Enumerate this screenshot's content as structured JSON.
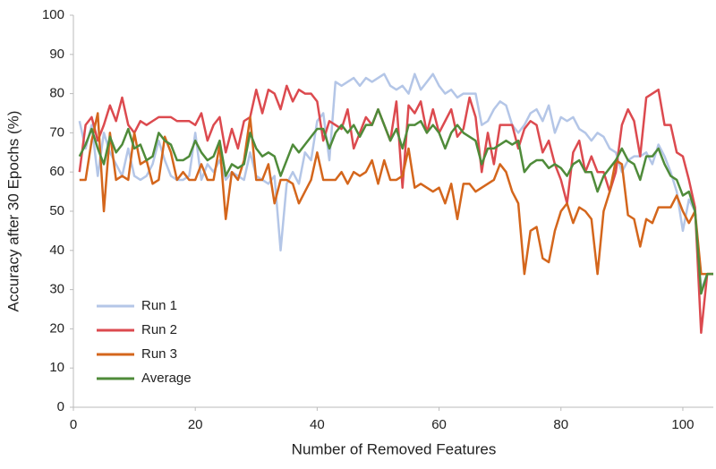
{
  "chart_data": {
    "type": "line",
    "xlabel": "Number of Removed Features",
    "ylabel": "Accuracy after 30 Epochs (%)",
    "x": [
      1,
      2,
      3,
      4,
      5,
      6,
      7,
      8,
      9,
      10,
      11,
      12,
      13,
      14,
      15,
      16,
      17,
      18,
      19,
      20,
      21,
      22,
      23,
      24,
      25,
      26,
      27,
      28,
      29,
      30,
      31,
      32,
      33,
      34,
      35,
      36,
      37,
      38,
      39,
      40,
      41,
      42,
      43,
      44,
      45,
      46,
      47,
      48,
      49,
      50,
      51,
      52,
      53,
      54,
      55,
      56,
      57,
      58,
      59,
      60,
      61,
      62,
      63,
      64,
      65,
      66,
      67,
      68,
      69,
      70,
      71,
      72,
      73,
      74,
      75,
      76,
      77,
      78,
      79,
      80,
      81,
      82,
      83,
      84,
      85,
      86,
      87,
      88,
      89,
      90,
      91,
      92,
      93,
      94,
      95,
      96,
      97,
      98,
      99,
      100,
      101,
      102,
      103,
      104,
      105
    ],
    "series": [
      {
        "name": "Run 1",
        "color": "#b4c6e7",
        "values": [
          73,
          66,
          72,
          59,
          70,
          65,
          62,
          59,
          66,
          59,
          58,
          59,
          62,
          68,
          63,
          59,
          58,
          58,
          59,
          70,
          58,
          62,
          60,
          63,
          58,
          60,
          59,
          58,
          65,
          59,
          58,
          57,
          59,
          40,
          57,
          60,
          57,
          65,
          63,
          73,
          75,
          63,
          83,
          82,
          83,
          84,
          82,
          84,
          83,
          84,
          85,
          82,
          81,
          82,
          80,
          85,
          81,
          83,
          85,
          82,
          80,
          81,
          79,
          80,
          80,
          80,
          72,
          73,
          76,
          78,
          77,
          72,
          70,
          72,
          75,
          76,
          73,
          77,
          70,
          74,
          73,
          74,
          71,
          70,
          68,
          70,
          69,
          66,
          65,
          60,
          63,
          64,
          64,
          65,
          62,
          67,
          64,
          60,
          55,
          45,
          53,
          50,
          30,
          34,
          34
        ]
      },
      {
        "name": "Run 2",
        "color": "#dc4a4f",
        "values": [
          60,
          72,
          74,
          68,
          72,
          77,
          73,
          79,
          72,
          70,
          73,
          72,
          73,
          74,
          74,
          74,
          73,
          73,
          73,
          72,
          75,
          68,
          72,
          74,
          65,
          71,
          66,
          73,
          74,
          81,
          75,
          81,
          80,
          76,
          82,
          78,
          81,
          80,
          80,
          78,
          68,
          73,
          72,
          71,
          76,
          66,
          70,
          74,
          72,
          76,
          72,
          68,
          78,
          56,
          77,
          75,
          78,
          70,
          76,
          70,
          73,
          76,
          69,
          71,
          79,
          74,
          60,
          70,
          62,
          72,
          72,
          72,
          66,
          71,
          73,
          72,
          65,
          68,
          62,
          58,
          52,
          65,
          68,
          60,
          64,
          60,
          60,
          55,
          60,
          72,
          76,
          73,
          64,
          79,
          80,
          81,
          72,
          72,
          65,
          64,
          58,
          51,
          19,
          34,
          34
        ]
      },
      {
        "name": "Run 3",
        "color": "#d4661c",
        "values": [
          58,
          58,
          68,
          75,
          50,
          70,
          58,
          59,
          58,
          70,
          62,
          63,
          57,
          58,
          69,
          65,
          58,
          60,
          58,
          58,
          62,
          58,
          58,
          67,
          48,
          60,
          58,
          63,
          74,
          58,
          58,
          62,
          52,
          58,
          58,
          57,
          52,
          55,
          58,
          65,
          58,
          58,
          58,
          60,
          57,
          60,
          59,
          60,
          63,
          57,
          63,
          58,
          58,
          59,
          66,
          56,
          57,
          56,
          55,
          56,
          52,
          57,
          48,
          57,
          57,
          55,
          56,
          57,
          58,
          62,
          60,
          55,
          52,
          34,
          45,
          46,
          38,
          37,
          45,
          50,
          52,
          47,
          51,
          50,
          48,
          34,
          50,
          55,
          63,
          62,
          49,
          48,
          41,
          48,
          47,
          51,
          51,
          51,
          54,
          50,
          47,
          50,
          34,
          34,
          34
        ]
      },
      {
        "name": "Average",
        "color": "#4f8b3a",
        "values": [
          64,
          67,
          71,
          66,
          62,
          69,
          65,
          67,
          71,
          66,
          67,
          63,
          64,
          70,
          68,
          67,
          63,
          63,
          64,
          68,
          65,
          63,
          64,
          68,
          59,
          62,
          61,
          62,
          70,
          66,
          64,
          65,
          64,
          59,
          63,
          67,
          65,
          67,
          69,
          71,
          71,
          66,
          70,
          72,
          70,
          72,
          69,
          72,
          72,
          76,
          72,
          68,
          71,
          66,
          72,
          72,
          73,
          70,
          72,
          70,
          66,
          70,
          72,
          70,
          69,
          68,
          62,
          66,
          66,
          67,
          68,
          67,
          68,
          60,
          62,
          63,
          63,
          61,
          62,
          61,
          59,
          62,
          63,
          60,
          60,
          55,
          59,
          61,
          63,
          66,
          63,
          62,
          58,
          64,
          64,
          66,
          62,
          59,
          58,
          54,
          55,
          50,
          29,
          34,
          34
        ]
      }
    ],
    "xlim": [
      0,
      105
    ],
    "xticks": [
      0,
      20,
      40,
      60,
      80,
      100
    ],
    "ylim": [
      0,
      100
    ],
    "yticks": [
      0,
      10,
      20,
      30,
      40,
      50,
      60,
      70,
      80,
      90,
      100
    ],
    "grid": false,
    "legend": "lower left"
  }
}
